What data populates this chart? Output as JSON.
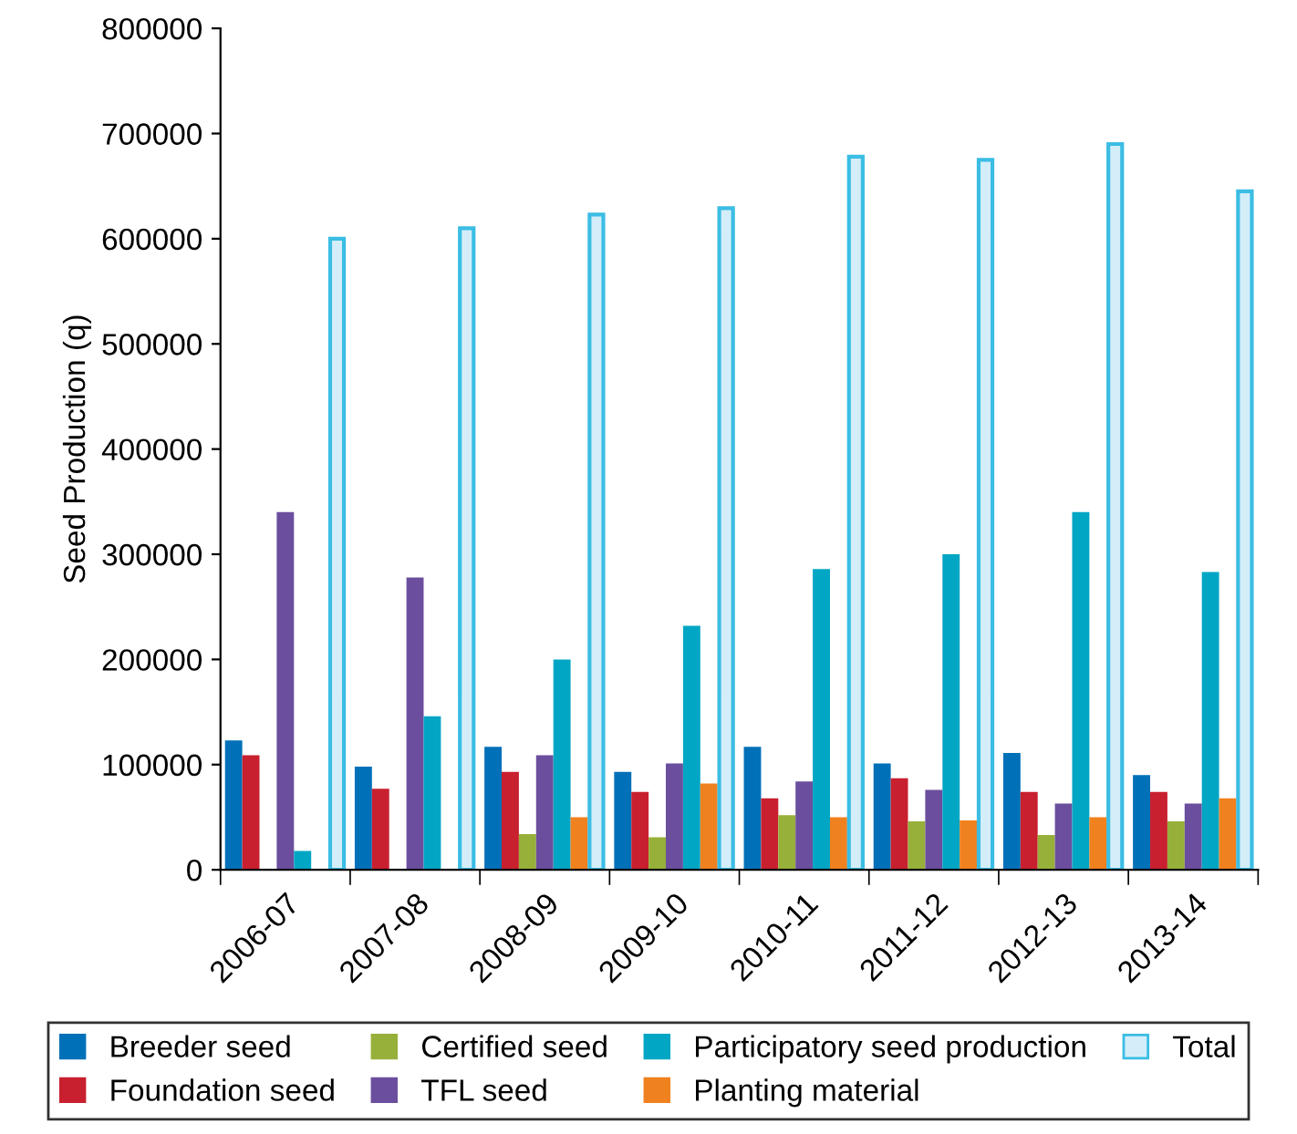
{
  "chart_data": {
    "type": "bar",
    "ylabel": "Seed Production (q)",
    "categories": [
      "2006-07",
      "2007-08",
      "2008-09",
      "2009-10",
      "2010-11",
      "2011-12",
      "2012-13",
      "2013-14"
    ],
    "series": [
      {
        "name": "Breeder seed",
        "color": "#0070b8",
        "values": [
          123000,
          98000,
          117000,
          93000,
          117000,
          101000,
          111000,
          90000
        ]
      },
      {
        "name": "Foundation seed",
        "color": "#c8202f",
        "values": [
          109000,
          77000,
          93000,
          74000,
          68000,
          87000,
          74000,
          74000
        ]
      },
      {
        "name": "Certified seed",
        "color": "#97b03a",
        "values": [
          null,
          null,
          34000,
          31000,
          52000,
          46000,
          33000,
          46000
        ]
      },
      {
        "name": "TFL seed",
        "color": "#6b4f9e",
        "values": [
          340000,
          278000,
          109000,
          101000,
          84000,
          76000,
          63000,
          63000
        ]
      },
      {
        "name": "Participatory seed production",
        "color": "#00a6c4",
        "values": [
          18000,
          146000,
          200000,
          232000,
          286000,
          300000,
          340000,
          283000
        ]
      },
      {
        "name": "Planting material",
        "color": "#f0811f",
        "values": [
          null,
          null,
          50000,
          82000,
          50000,
          47000,
          50000,
          68000
        ]
      },
      {
        "name": "Total",
        "color": "#d4eef9",
        "values": [
          600000,
          610000,
          623000,
          629000,
          678000,
          675000,
          690000,
          645000
        ]
      }
    ],
    "ylim": [
      0,
      800000
    ],
    "yticks": [
      0,
      100000,
      200000,
      300000,
      400000,
      500000,
      600000,
      700000,
      800000
    ],
    "grid": false,
    "legend": "bottom"
  }
}
